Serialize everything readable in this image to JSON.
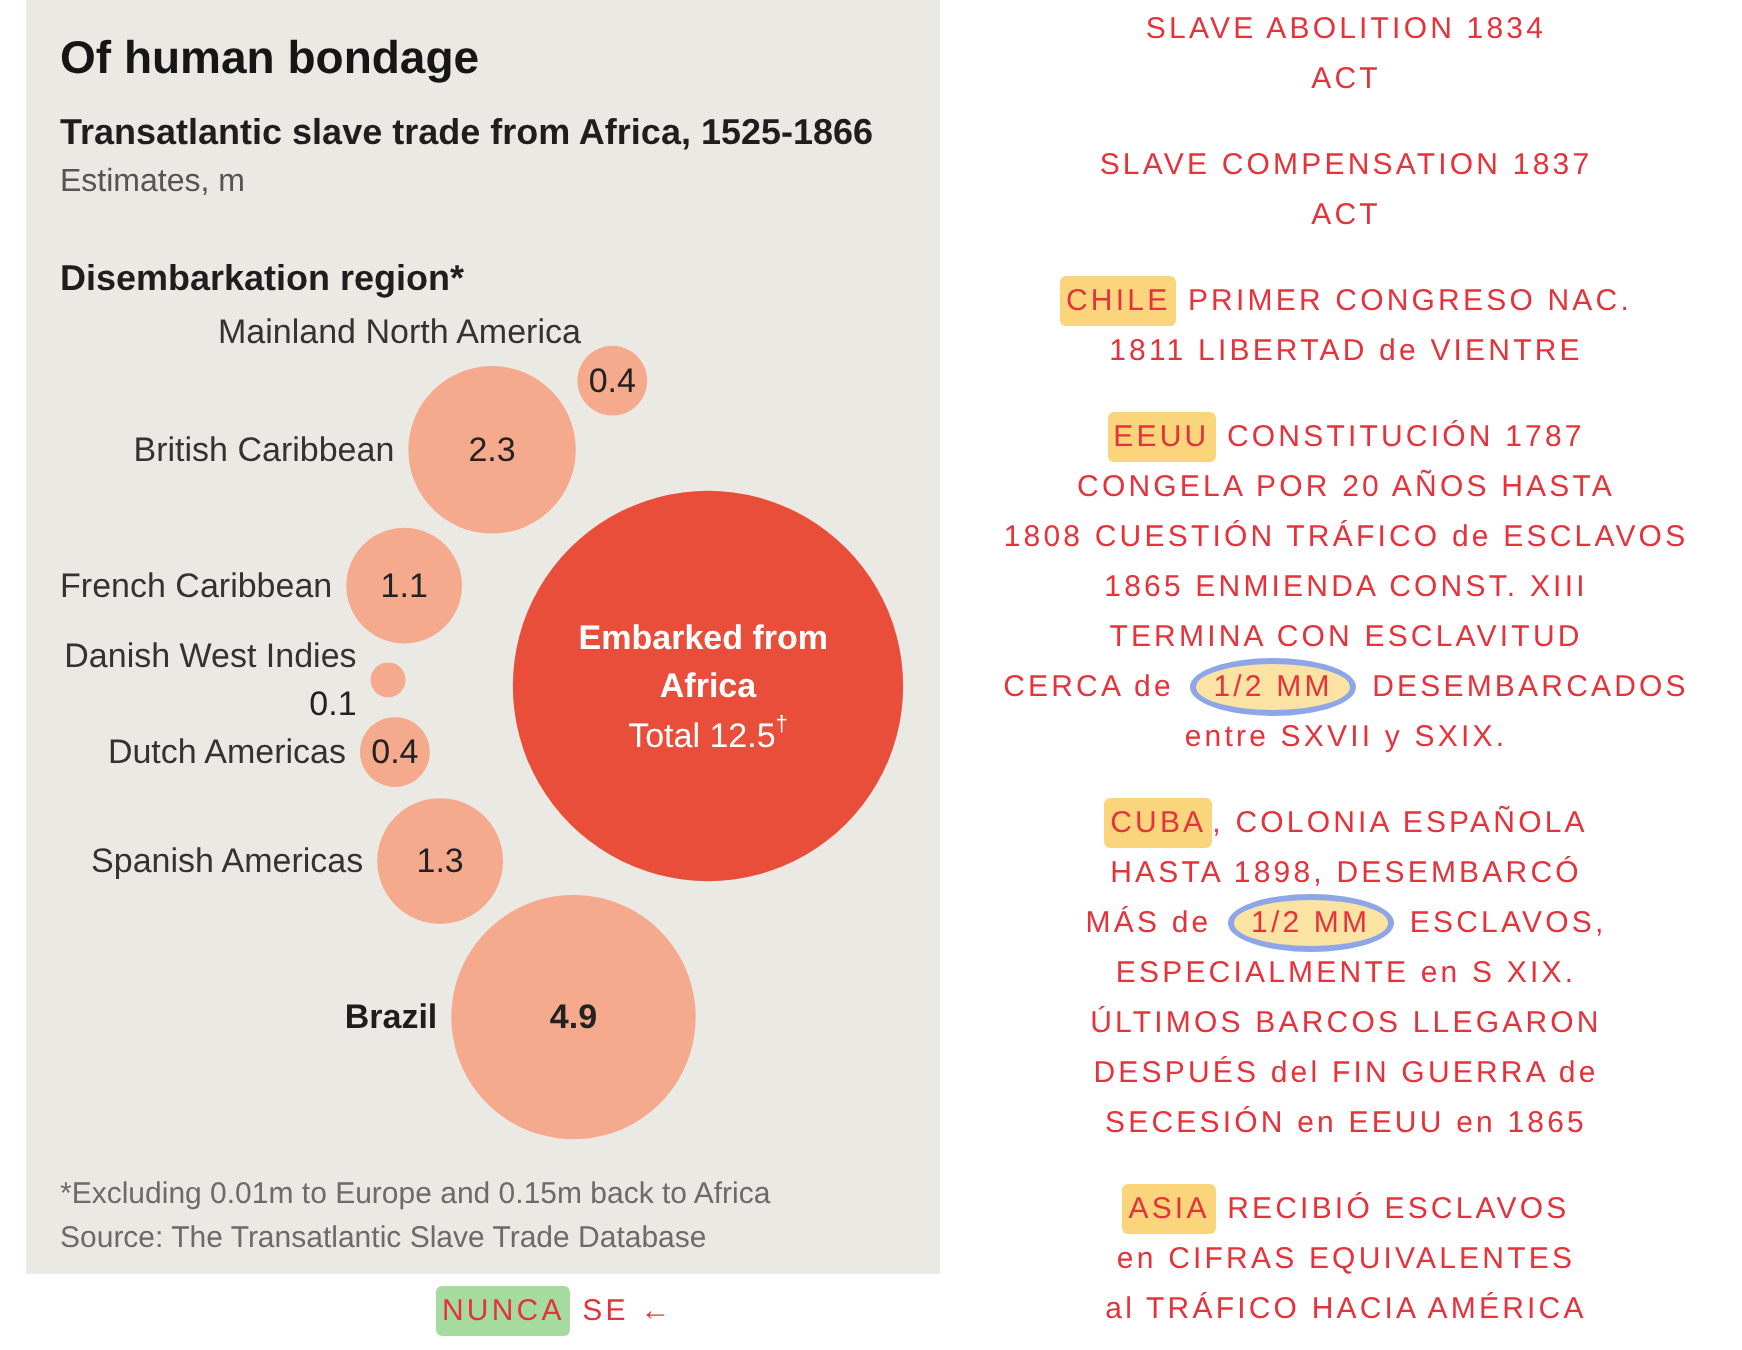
{
  "chart_data": [
    {
      "type": "other",
      "title": "Of human bondage",
      "subtitle": "Transatlantic slave trade from Africa, 1525-1866\nEstimates, m",
      "legend_title": "Disembarkation region*",
      "categories": [
        "Mainland North America",
        "British Caribbean",
        "French Caribbean",
        "Danish West Indies",
        "Dutch Americas",
        "Spanish Americas",
        "Brazil",
        "Embarked from Africa"
      ],
      "values": [
        0.4,
        2.3,
        1.1,
        0.1,
        0.4,
        1.3,
        4.9,
        12.5
      ],
      "colors": [
        "#f5a98d",
        "#f5a98d",
        "#f5a98d",
        "#f5a98d",
        "#f5a98d",
        "#f5a98d",
        "#f5a98d",
        "#e94e3b"
      ],
      "value_labels": [
        "0.4",
        "2.3",
        "1.1",
        "0.1",
        "0.4",
        "1.3",
        "4.9",
        "Total 12.5$^{†}$"
      ],
      "annotations": [
        "*Excluding 0.01m to Europe and 0.15m back to Africa",
        "Source: The Transatlantic Slave Trade Database"
      ]
    },
    {
      "type": "other",
      "annotations": [
        "SLAVE ABOLITION 1834\nACT",
        "SLAVE COMPENSATION 1837\nACT",
        "CHILE PRIMER CONGRESO NAC.\n1811 LIBERTAD de VIENTRE",
        "EEUU CONSTITUCIÓN 1787\nCONGELA POR 20 AÑOS HASTA\n1808 CUESTIÓN TRÁFICO de ESCLAVOS\n1865 ENMIENDA CONST. XIII\nTERMINA CON ESCLAVITUD\nCERCA de 1/2 MM DESEMBARCADOS\nentre SXVII y SXIX.",
        "CUBA, COLONIA ESPAÑOLA\nHASTA 1898, DESEMBARCÓ\nMÁS de 1/2 MM ESCLAVOS,\nESPECIALMENTE en S XIX.\nÚLTIMOS BARCOS LLEGARON\nDESPUÉS del FIN GUERRA de\nSECESIÓN en EEUU en 1865",
        "ASIA RECIBIÓ ESCLAVOS\nen CIFRAS EQUIVALENTES\nal TRÁFICO HACIA AMÉRICA",
        "NUNCA SE ←"
      ]
    }
  ]
}
